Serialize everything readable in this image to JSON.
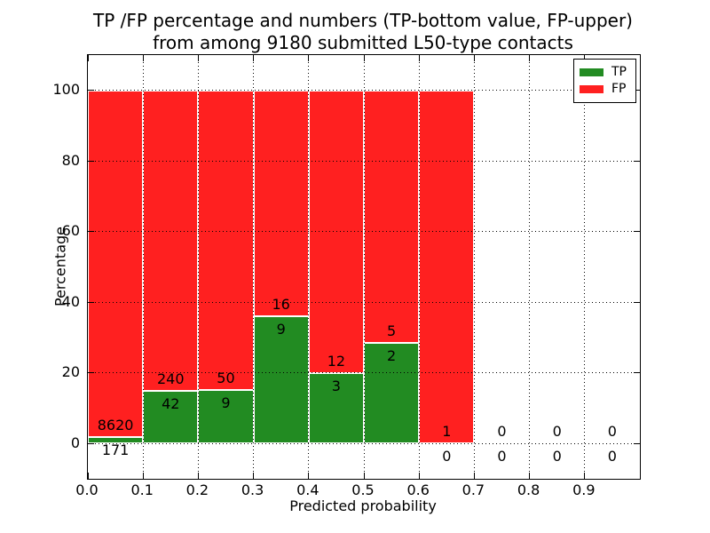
{
  "title": {
    "line1": "TP /FP percentage and numbers (TP-bottom value, FP-upper)",
    "line2": "from among 9180 submitted L50-type contacts"
  },
  "chart_data": {
    "type": "bar",
    "stacked": true,
    "normalized_to_percent": true,
    "title": "TP /FP percentage and numbers (TP-bottom value, FP-upper) from among 9180 submitted L50-type contacts",
    "total_submitted": 9180,
    "xlabel": "Predicted probability",
    "ylabel": "Percentage",
    "xlim": [
      0,
      1
    ],
    "ylim": [
      -10,
      110
    ],
    "xticks": [
      0.0,
      0.1,
      0.2,
      0.3,
      0.4,
      0.5,
      0.6,
      0.7,
      0.8,
      0.9
    ],
    "yticks": [
      0,
      20,
      40,
      60,
      80,
      100
    ],
    "grid": {
      "visible": true,
      "style": "dotted",
      "color": "#000000",
      "above_bars": true
    },
    "legend_position": "upper right",
    "series": [
      {
        "name": "TP",
        "color": "#228b22"
      },
      {
        "name": "FP",
        "color": "#ff2020"
      }
    ],
    "bins": [
      {
        "x0": 0.0,
        "x1": 0.1,
        "tp": 171,
        "fp": 8620,
        "tp_percent": 1.95
      },
      {
        "x0": 0.1,
        "x1": 0.2,
        "tp": 42,
        "fp": 240,
        "tp_percent": 14.89
      },
      {
        "x0": 0.2,
        "x1": 0.3,
        "tp": 9,
        "fp": 50,
        "tp_percent": 15.25
      },
      {
        "x0": 0.3,
        "x1": 0.4,
        "tp": 9,
        "fp": 16,
        "tp_percent": 36.0
      },
      {
        "x0": 0.4,
        "x1": 0.5,
        "tp": 3,
        "fp": 12,
        "tp_percent": 20.0
      },
      {
        "x0": 0.5,
        "x1": 0.6,
        "tp": 2,
        "fp": 5,
        "tp_percent": 28.57
      },
      {
        "x0": 0.6,
        "x1": 0.7,
        "tp": 0,
        "fp": 1,
        "tp_percent": 0.0
      },
      {
        "x0": 0.7,
        "x1": 0.8,
        "tp": 0,
        "fp": 0,
        "tp_percent": null
      },
      {
        "x0": 0.8,
        "x1": 0.9,
        "tp": 0,
        "fp": 0,
        "tp_percent": null
      },
      {
        "x0": 0.9,
        "x1": 1.0,
        "tp": 0,
        "fp": 0,
        "tp_percent": null
      }
    ]
  }
}
